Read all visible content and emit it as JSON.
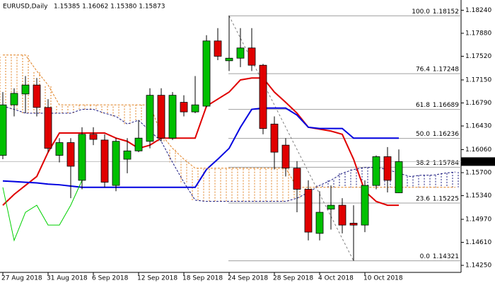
{
  "header": {
    "symbol": "EURUSD,Daily",
    "quote": "1.15385 1.16062 1.15380 1.15873"
  },
  "chart_data": {
    "type": "candlestick",
    "categories": [
      "27 Aug 2018",
      null,
      null,
      null,
      "31 Aug 2018",
      null,
      null,
      null,
      "6 Sep 2018",
      null,
      null,
      null,
      "12 Sep 2018",
      null,
      null,
      null,
      "18 Sep 2018",
      null,
      null,
      null,
      "24 Sep 2018",
      null,
      null,
      null,
      "28 Sep 2018",
      null,
      null,
      null,
      "4 Oct 2018",
      null,
      null,
      null,
      "10 Oct 2018",
      null,
      null,
      null,
      null,
      null,
      null,
      null,
      null
    ],
    "open": [
      1.1597,
      1.1676,
      1.1693,
      1.1707,
      1.1672,
      1.1597,
      1.1617,
      1.1558,
      1.163,
      1.1621,
      1.155,
      1.1591,
      1.1604,
      1.1619,
      1.1691,
      1.1624,
      1.168,
      1.1665,
      1.1674,
      1.1776,
      1.1745,
      1.1749,
      1.1765,
      1.1738,
      1.1646,
      1.1613,
      1.1577,
      1.1544,
      1.1475,
      1.1513,
      1.1519,
      1.1491,
      1.1488,
      1.155,
      1.1595,
      1.15385,
      null,
      null,
      null,
      null,
      null
    ],
    "high": [
      1.1696,
      1.1702,
      1.1721,
      1.1718,
      1.1685,
      1.1624,
      1.1624,
      1.1641,
      1.1641,
      1.163,
      1.1624,
      1.1624,
      1.1652,
      1.1702,
      1.1702,
      1.1696,
      1.1691,
      1.1721,
      1.1785,
      1.1796,
      1.18152,
      1.1796,
      1.1796,
      1.174,
      1.1658,
      1.1624,
      1.1588,
      1.1558,
      1.1541,
      1.155,
      1.153,
      1.1519,
      1.1558,
      1.1597,
      1.161,
      1.16062,
      null,
      null,
      null,
      null,
      null
    ],
    "low": [
      1.1591,
      1.1658,
      1.1663,
      1.1658,
      1.1602,
      1.1586,
      1.153,
      1.1544,
      1.1613,
      1.1547,
      1.1541,
      1.1569,
      1.1602,
      1.1608,
      1.1619,
      1.1621,
      1.1658,
      1.1663,
      1.1672,
      1.1746,
      1.1729,
      1.1735,
      1.1729,
      1.163,
      1.1575,
      1.1564,
      1.1508,
      1.1464,
      1.1464,
      1.1481,
      1.1475,
      1.14321,
      1.1477,
      1.1544,
      1.1539,
      1.1538,
      null,
      null,
      null,
      null,
      null
    ],
    "close": [
      1.1676,
      1.1694,
      1.1707,
      1.1672,
      1.1608,
      1.1617,
      1.158,
      1.163,
      1.1622,
      1.1555,
      1.1619,
      1.1604,
      1.1624,
      1.1691,
      1.1624,
      1.1691,
      1.1665,
      1.1676,
      1.1776,
      1.1752,
      1.1749,
      1.1765,
      1.1738,
      1.1639,
      1.1602,
      1.1577,
      1.1544,
      1.1477,
      1.1508,
      1.1519,
      1.1488,
      1.1488,
      1.155,
      1.1595,
      1.1558,
      1.15873,
      null,
      null,
      null,
      null,
      null
    ],
    "up_color": "#00c000",
    "down_color": "#e00000",
    "lines": [
      {
        "color": "#e00000",
        "width": 2,
        "dash": false,
        "values": [
          1.1519,
          1.1536,
          1.155,
          1.1564,
          1.1602,
          1.1632,
          1.1632,
          1.1632,
          1.1632,
          1.1632,
          1.1624,
          1.1619,
          1.1608,
          1.1613,
          1.1624,
          1.1624,
          1.1624,
          1.1624,
          1.1674,
          1.1685,
          1.1696,
          1.1715,
          1.1718,
          1.1718,
          1.1696,
          1.168,
          1.1663,
          1.1641,
          1.1638,
          1.1635,
          1.163,
          1.1591,
          1.1541,
          1.1525,
          1.1519,
          1.1519,
          null,
          null,
          null,
          null,
          null
        ]
      },
      {
        "color": "#0000e0",
        "width": 2,
        "dash": false,
        "values": [
          1.1557,
          1.1556,
          1.1555,
          1.1554,
          1.1552,
          1.1551,
          1.1549,
          1.1547,
          1.1547,
          1.1547,
          1.1547,
          1.1547,
          1.1547,
          1.1547,
          1.1547,
          1.1547,
          1.1547,
          1.1547,
          1.1575,
          1.1591,
          1.1608,
          1.1641,
          1.1669,
          1.1671,
          1.1671,
          1.1671,
          1.166,
          1.1641,
          1.1639,
          1.1639,
          1.1639,
          1.1624,
          1.1624,
          1.1624,
          1.1624,
          1.1624,
          null,
          null,
          null,
          null,
          null
        ]
      },
      {
        "color": "#00d000",
        "width": 1,
        "dash": false,
        "values": [
          1.1547,
          1.1464,
          1.1508,
          1.1519,
          1.1488,
          1.1488,
          1.1519,
          1.1558,
          null,
          null,
          null,
          null,
          null,
          null,
          null,
          null,
          null,
          null,
          null,
          null,
          null,
          null,
          null,
          null,
          null,
          null,
          null,
          null,
          null,
          null,
          null,
          null,
          null,
          null,
          null,
          null,
          null,
          null,
          null,
          null,
          null
        ]
      },
      {
        "color": "#1a1a80",
        "width": 1,
        "dash": true,
        "cloud": true,
        "values": [
          1.1674,
          1.1669,
          1.1663,
          1.1663,
          1.1663,
          1.1663,
          1.1663,
          1.1669,
          1.1669,
          1.1663,
          1.1658,
          1.1646,
          1.1652,
          1.1635,
          1.1619,
          1.1586,
          1.1555,
          1.1527,
          1.1525,
          1.1525,
          1.1525,
          1.1525,
          1.1525,
          1.1525,
          1.1525,
          1.1525,
          1.153,
          1.1539,
          1.155,
          1.1558,
          1.1569,
          1.1575,
          1.1578,
          1.1578,
          1.1575,
          1.1569,
          1.1564,
          1.1566,
          1.1566,
          1.1569,
          1.1571
        ]
      },
      {
        "color": "#e08020",
        "width": 1,
        "dash": true,
        "cloud": true,
        "values": [
          1.1754,
          1.1754,
          1.1754,
          1.1729,
          1.1707,
          1.1676,
          1.1676,
          1.1676,
          1.1676,
          1.1676,
          1.1676,
          1.1676,
          1.1676,
          1.1676,
          1.163,
          1.1608,
          1.1591,
          1.1577,
          1.1577,
          1.1577,
          1.1577,
          1.1577,
          1.1577,
          1.1577,
          1.1577,
          1.1577,
          1.1547,
          1.1547,
          1.1547,
          1.1547,
          1.1547,
          1.1547,
          1.1547,
          1.1547,
          1.1547,
          1.1547,
          1.1547,
          1.1547,
          1.1547,
          1.1547,
          1.1547
        ]
      }
    ],
    "fib_levels": [
      {
        "label": "100.0",
        "value": 1.18152
      },
      {
        "label": "76.4",
        "value": 1.17248
      },
      {
        "label": "61.8",
        "value": 1.16689
      },
      {
        "label": "50.0",
        "value": 1.16236
      },
      {
        "label": "38.2",
        "value": 1.15784
      },
      {
        "label": "23.6",
        "value": 1.15225
      },
      {
        "label": "0.0",
        "value": 1.14321
      }
    ],
    "ylim": [
      1.1414,
      1.184
    ],
    "yticks": [
      {
        "value": 1.1824,
        "label": "1.18240"
      },
      {
        "value": 1.1788,
        "label": "1.17880"
      },
      {
        "value": 1.1752,
        "label": "1.17520"
      },
      {
        "value": 1.1715,
        "label": "1.17150"
      },
      {
        "value": 1.1679,
        "label": "1.16790"
      },
      {
        "value": 1.1643,
        "label": "1.16430"
      },
      {
        "value": 1.1606,
        "label": "1.16060"
      },
      {
        "value": 1.157,
        "label": "1.15700"
      },
      {
        "value": 1.1534,
        "label": "1.15340"
      },
      {
        "value": 1.1497,
        "label": "1.14970"
      },
      {
        "value": 1.1461,
        "label": "1.14610"
      },
      {
        "value": 1.1425,
        "label": "1.14250"
      }
    ]
  }
}
